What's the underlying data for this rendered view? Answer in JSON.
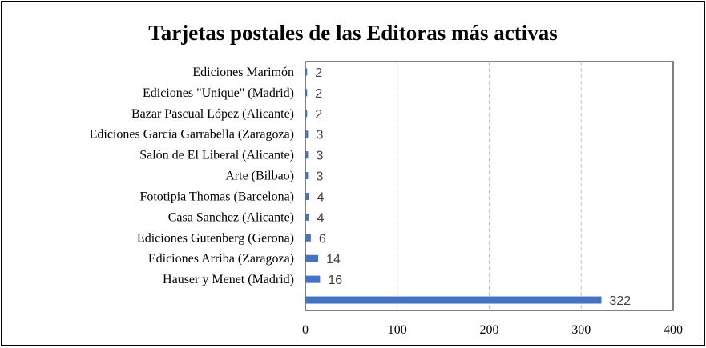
{
  "chart_data": {
    "type": "bar",
    "orientation": "horizontal",
    "title": "Tarjetas postales de las Editoras más activas",
    "categories": [
      "Ediciones Marimón",
      "Ediciones \"Unique\" (Madrid)",
      "Bazar Pascual López (Alicante)",
      "Ediciones García Garrabella (Zaragoza)",
      "Salón de El Liberal (Alicante)",
      "Arte (Bilbao)",
      "Fototipia Thomas (Barcelona)",
      "Casa Sanchez (Alicante)",
      "Ediciones Gutenberg (Gerona)",
      "Ediciones Arriba (Zaragoza)",
      "Hauser y Menet (Madrid)",
      ""
    ],
    "values": [
      2,
      2,
      2,
      3,
      3,
      3,
      4,
      4,
      6,
      14,
      16,
      322
    ],
    "xlim": [
      0,
      400
    ],
    "xticks": [
      "0",
      "100",
      "200",
      "300",
      "400"
    ],
    "xlabel": "",
    "ylabel": "",
    "grid": "vertical dashed",
    "legend": "none",
    "colors": {
      "bar": "#4472c4",
      "grid": "#b4c7e7",
      "axis": "#000000",
      "data_label": "#404040"
    }
  }
}
